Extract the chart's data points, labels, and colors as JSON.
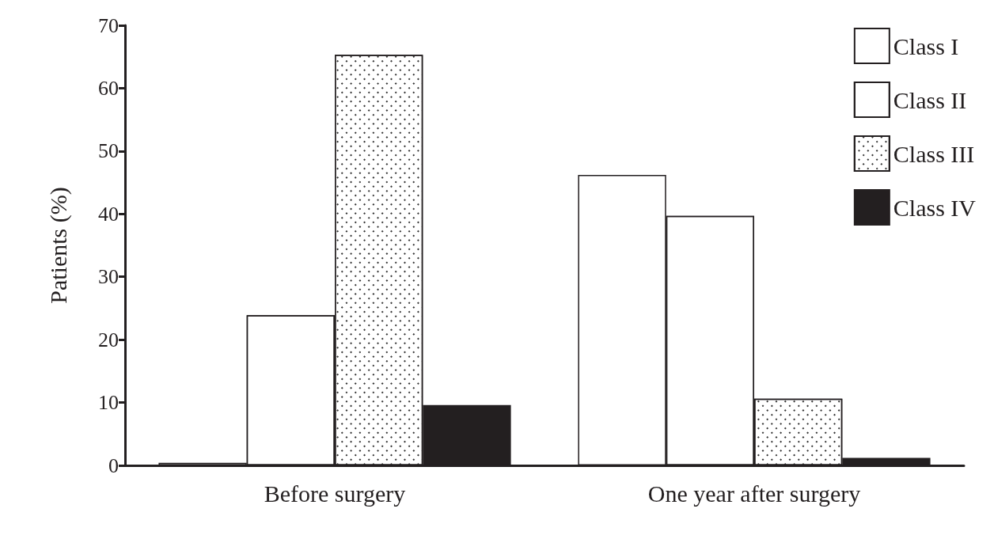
{
  "chart_data": {
    "type": "bar",
    "ylabel": "Patients (%)",
    "categories": [
      "Before surgery",
      "One year after surgery"
    ],
    "series": [
      {
        "name": "Class I",
        "color": "#ffffff",
        "values": [
          0.4,
          46.2
        ]
      },
      {
        "name": "Class II",
        "color": "#ffffff",
        "values": [
          23.9,
          39.7
        ]
      },
      {
        "name": "Class III",
        "color": "#ffffff",
        "values": [
          65.3,
          10.6
        ]
      },
      {
        "name": "Class IV",
        "color": "#231f20",
        "values": [
          9.6,
          1.2
        ]
      }
    ],
    "ylim": [
      0,
      70
    ],
    "yticks": [
      0,
      10,
      20,
      30,
      40,
      50,
      60,
      70
    ],
    "grid": false,
    "legend": "top right"
  }
}
